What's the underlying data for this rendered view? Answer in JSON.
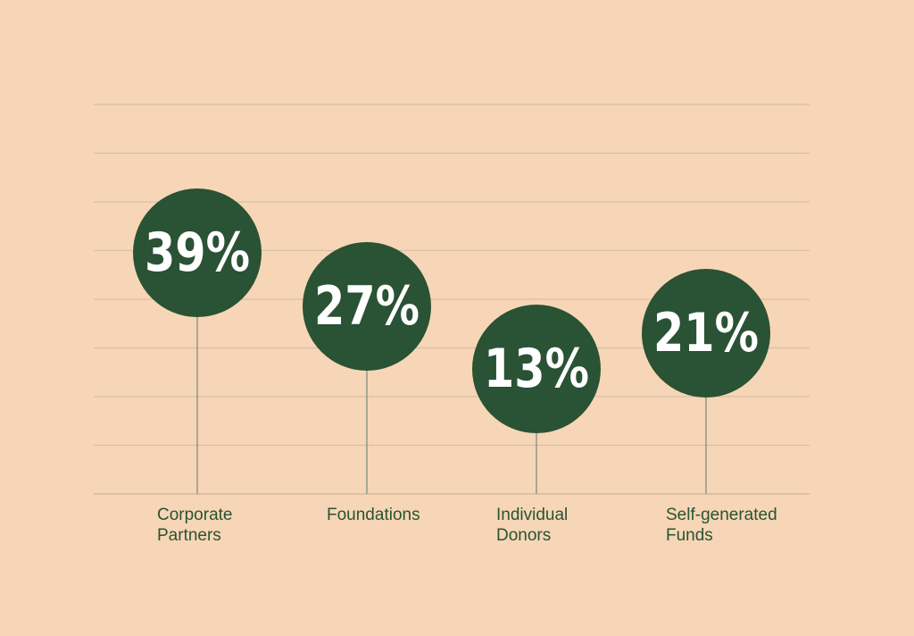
{
  "colors": {
    "background": "#f6d6b6",
    "bubble": "#2a5234",
    "value_text": "#ffffff",
    "label_text": "#2a5234",
    "gridline": "#d9bfa6",
    "stem": "#8f9a86"
  },
  "chart_data": {
    "type": "lollipop",
    "title": "",
    "xlabel": "",
    "ylabel": "",
    "grid": true,
    "legend": "none",
    "ylim": [
      0,
      40
    ],
    "categories": [
      {
        "lines": [
          "Corporate",
          "Partners"
        ],
        "value": 39,
        "value_label": "39%"
      },
      {
        "lines": [
          "Foundations"
        ],
        "value": 27,
        "value_label": "27%"
      },
      {
        "lines": [
          "Individual",
          "Donors"
        ],
        "value": 13,
        "value_label": "13%"
      },
      {
        "lines": [
          "Self-generated",
          "Funds"
        ],
        "value": 21,
        "value_label": "21%"
      }
    ]
  }
}
